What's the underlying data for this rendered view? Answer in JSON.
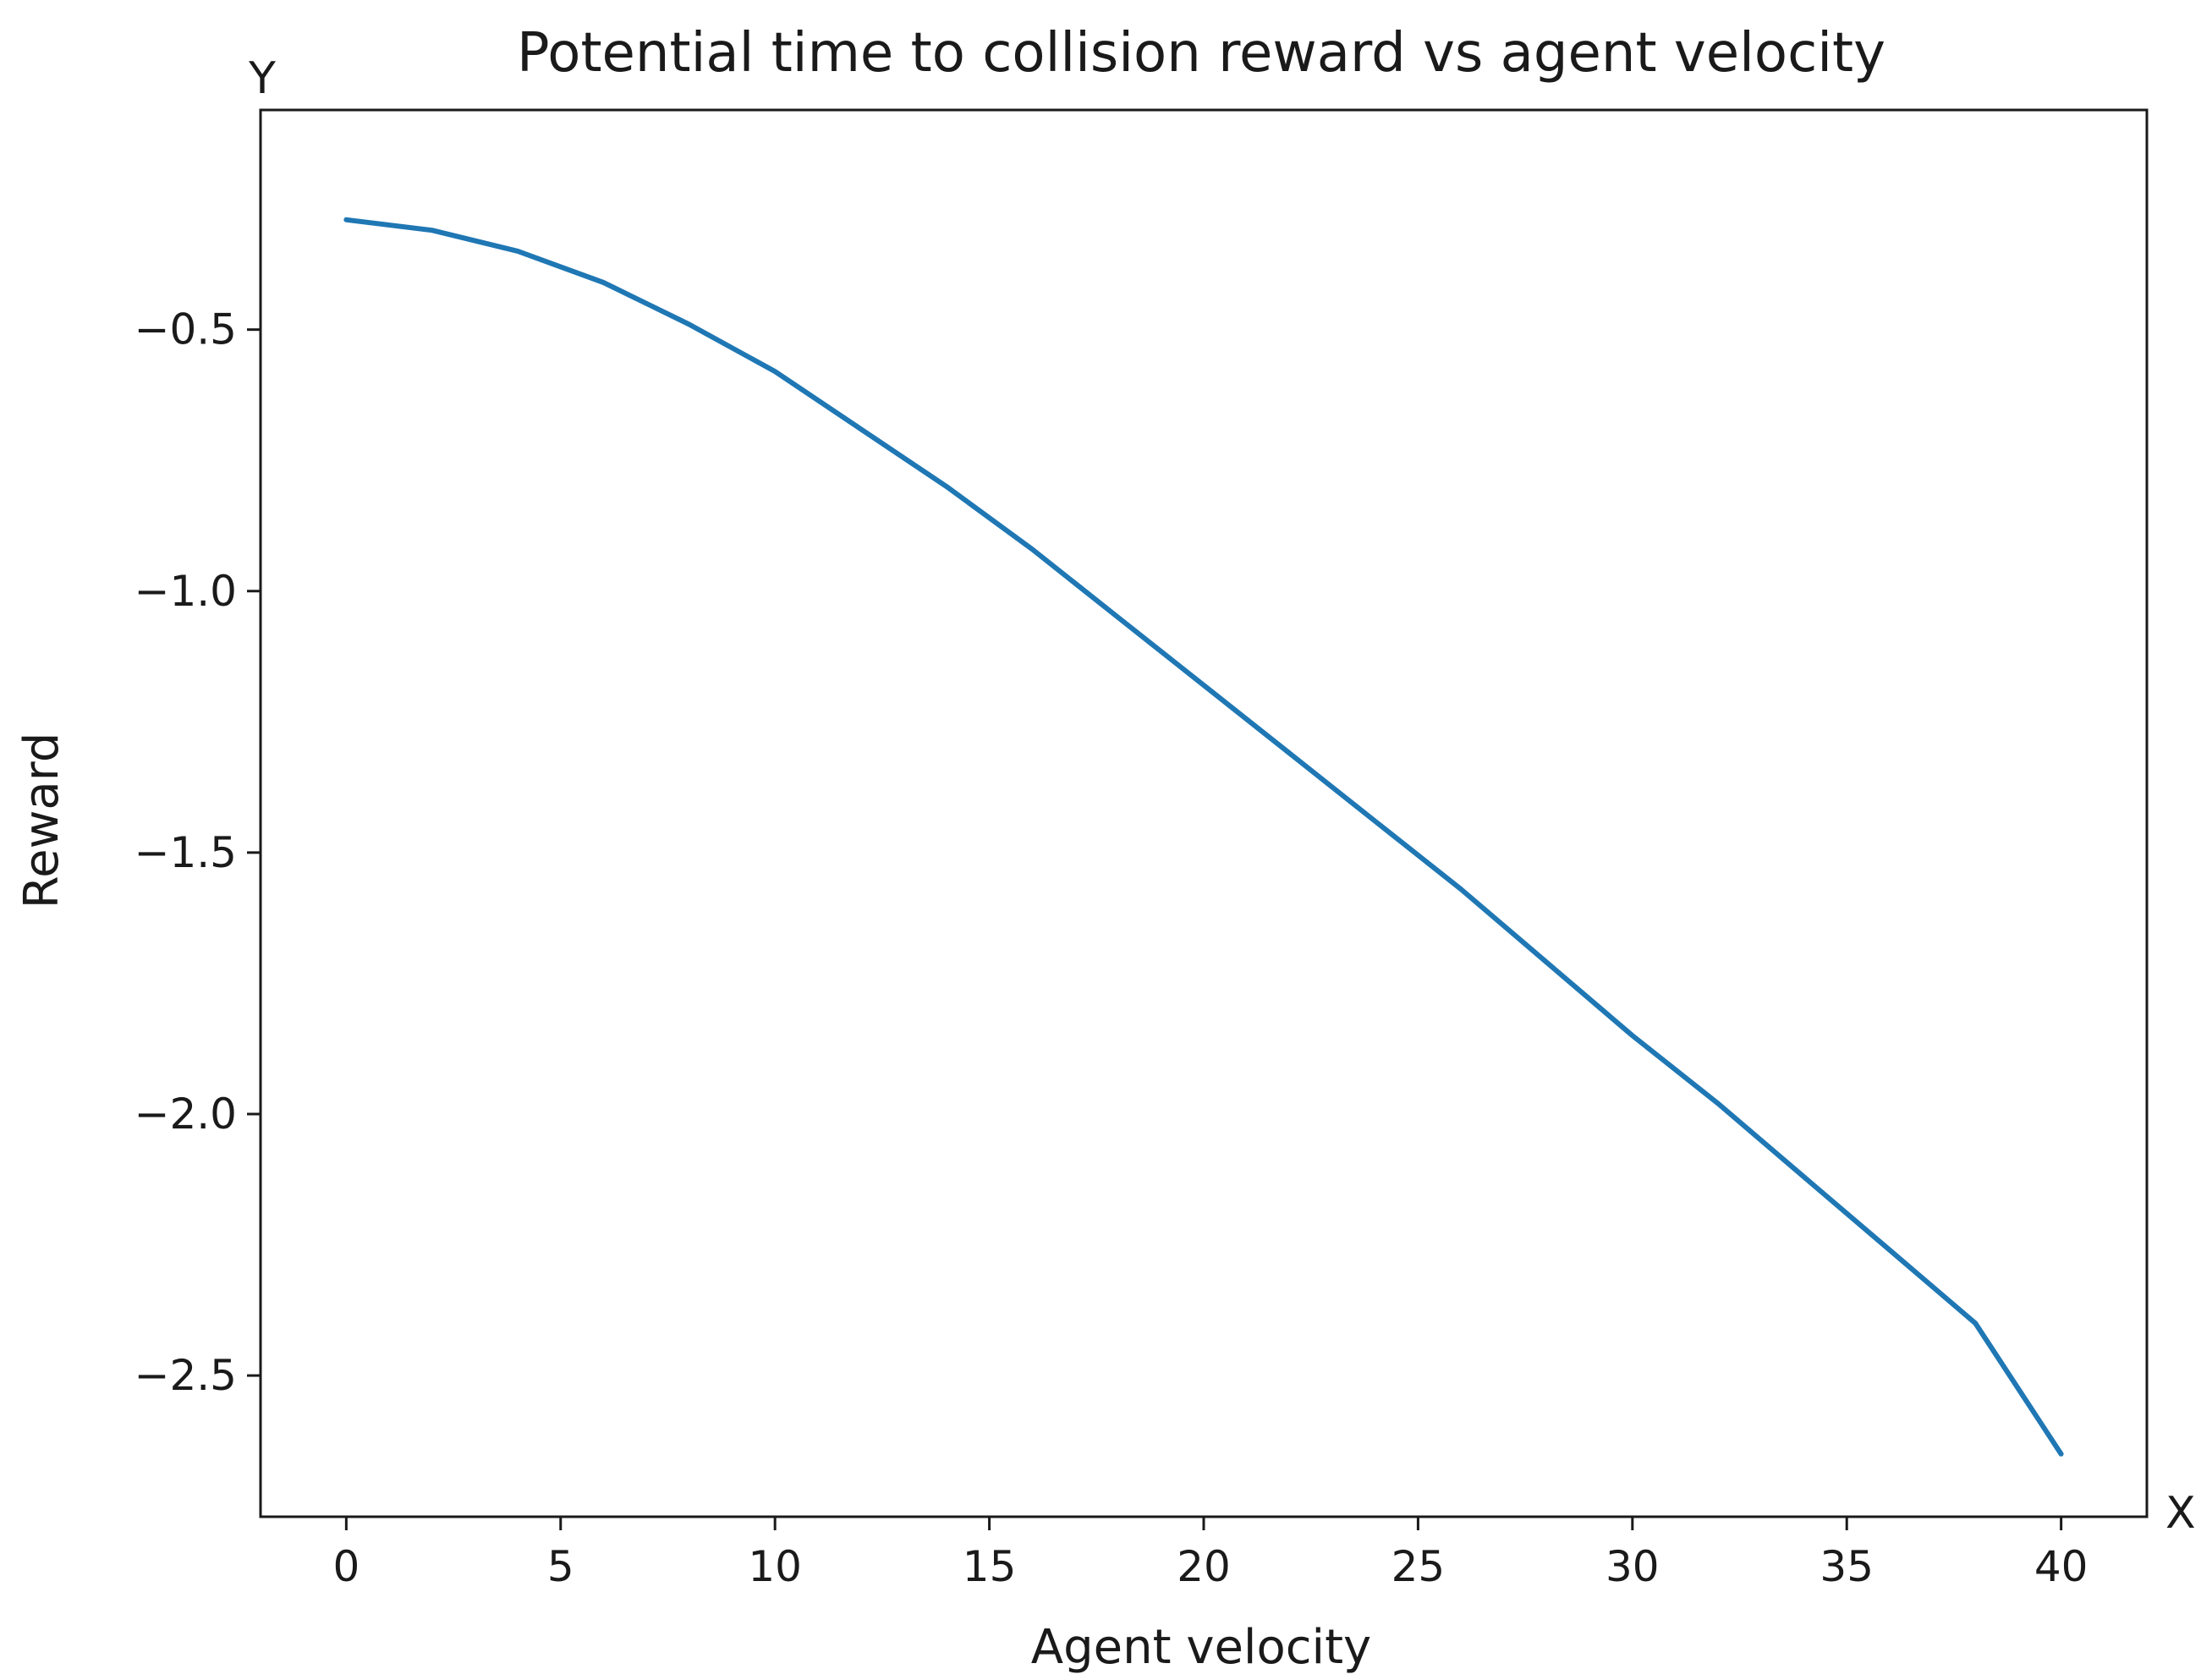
{
  "chart_data": {
    "type": "line",
    "title": "Potential time to collision reward vs agent velocity",
    "xlabel": "Agent velocity",
    "ylabel": "Reward",
    "x_axis_name": "X",
    "y_axis_name": "Y",
    "xlim": [
      -2,
      42
    ],
    "ylim": [
      -2.77,
      -0.08
    ],
    "xticks": [
      0,
      5,
      10,
      15,
      20,
      25,
      30,
      35,
      40
    ],
    "xtick_labels": [
      "0",
      "5",
      "10",
      "15",
      "20",
      "25",
      "30",
      "35",
      "40"
    ],
    "yticks": [
      -0.5,
      -1.0,
      -1.5,
      -2.0,
      -2.5
    ],
    "ytick_labels": [
      "−0.5",
      "−1.0",
      "−1.5",
      "−2.0",
      "−2.5"
    ],
    "grid": false,
    "legend": "none",
    "series": [
      {
        "color": "#1f77b4",
        "x": [
          0,
          2,
          4,
          6,
          8,
          10,
          12,
          14,
          16,
          18,
          20,
          22,
          24,
          26,
          28,
          30,
          32,
          34,
          36,
          38,
          40
        ],
        "y": [
          -0.29,
          -0.31,
          -0.35,
          -0.41,
          -0.49,
          -0.58,
          -0.69,
          -0.8,
          -0.92,
          -1.05,
          -1.18,
          -1.31,
          -1.44,
          -1.57,
          -1.71,
          -1.85,
          -1.98,
          -2.12,
          -2.26,
          -2.4,
          -2.65
        ]
      }
    ]
  }
}
